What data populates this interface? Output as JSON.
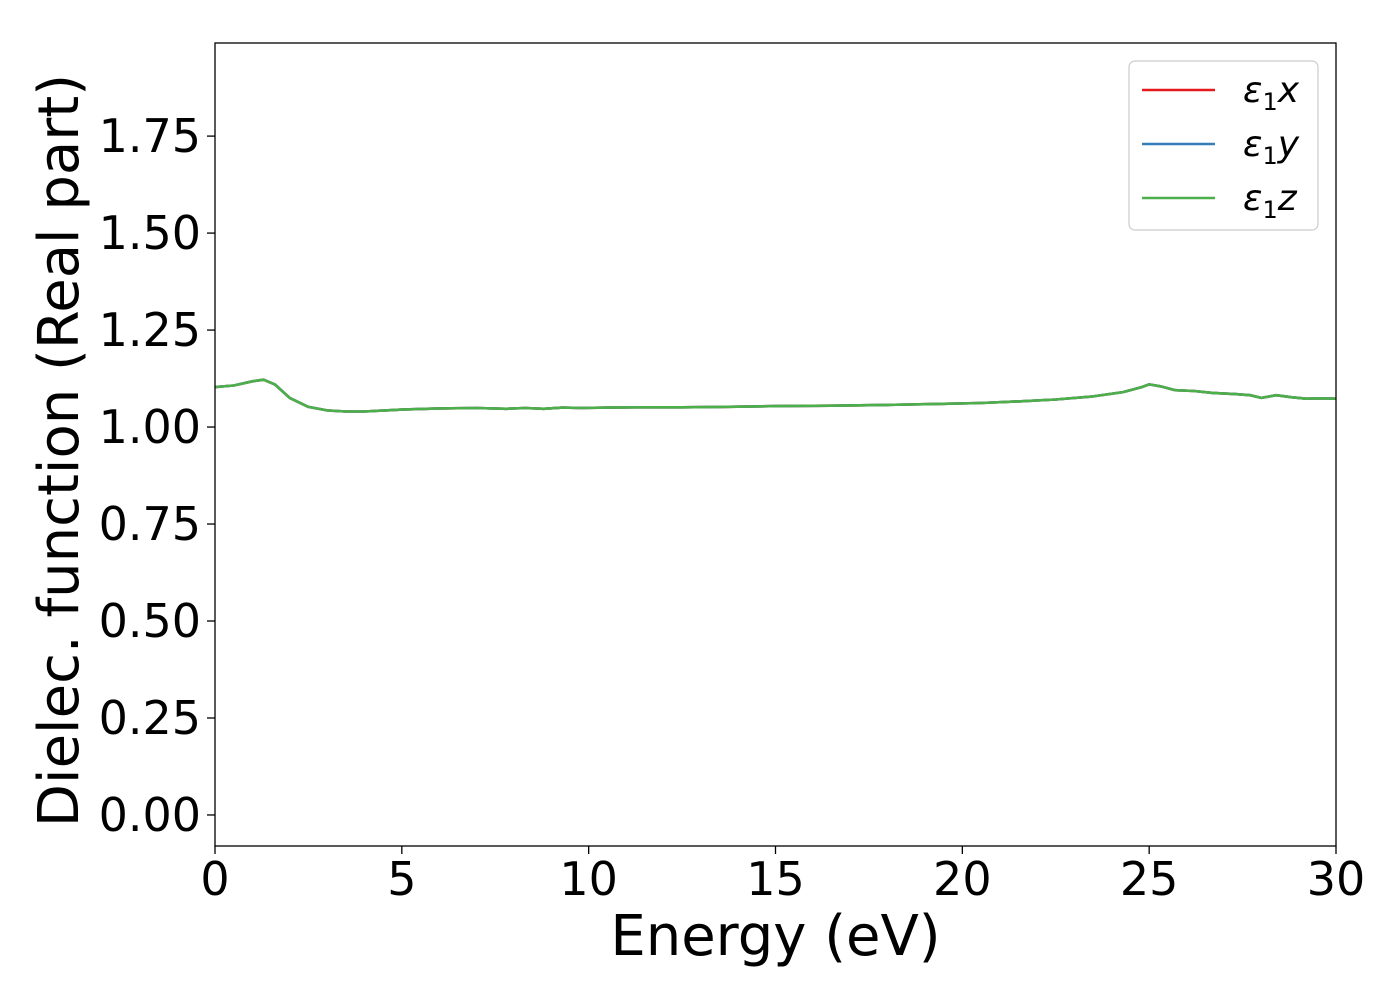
{
  "chart_data": {
    "type": "line",
    "xlabel": "Energy (eV)",
    "ylabel": "Dielec. function (Real part)",
    "xlim": [
      0,
      30
    ],
    "ylim": [
      -0.08,
      1.99
    ],
    "xticks": [
      0,
      5,
      10,
      15,
      20,
      25,
      30
    ],
    "xtick_labels": [
      "0",
      "5",
      "10",
      "15",
      "20",
      "25",
      "30"
    ],
    "yticks": [
      0.0,
      0.25,
      0.5,
      0.75,
      1.0,
      1.25,
      1.5,
      1.75
    ],
    "ytick_labels": [
      "0.00",
      "0.25",
      "0.50",
      "0.75",
      "1.00",
      "1.25",
      "1.50",
      "1.75"
    ],
    "grid": false,
    "legend_position": "top-right",
    "x": [
      0,
      0.5,
      1.0,
      1.3,
      1.6,
      2.0,
      2.5,
      3.0,
      3.5,
      4.0,
      5.0,
      6.0,
      7.0,
      7.8,
      8.3,
      8.8,
      9.3,
      9.8,
      10.5,
      11.5,
      12.5,
      13.5,
      15.0,
      16.5,
      18.0,
      19.5,
      20.5,
      21.5,
      22.5,
      23.5,
      24.3,
      24.8,
      25.0,
      25.3,
      25.7,
      26.2,
      26.7,
      27.3,
      27.7,
      28.0,
      28.4,
      28.8,
      29.2,
      29.6,
      30.0
    ],
    "series": [
      {
        "name": "ε₁x",
        "name_base": "ε",
        "name_sub": "1",
        "name_suffix": "x",
        "color": "#e41a1c",
        "values": [
          1.103,
          1.107,
          1.118,
          1.122,
          1.11,
          1.075,
          1.052,
          1.043,
          1.04,
          1.04,
          1.045,
          1.048,
          1.049,
          1.047,
          1.049,
          1.047,
          1.05,
          1.049,
          1.05,
          1.051,
          1.051,
          1.052,
          1.054,
          1.055,
          1.057,
          1.06,
          1.062,
          1.066,
          1.071,
          1.079,
          1.09,
          1.103,
          1.11,
          1.105,
          1.095,
          1.093,
          1.088,
          1.085,
          1.082,
          1.075,
          1.082,
          1.077,
          1.073,
          1.074,
          1.073
        ]
      },
      {
        "name": "ε₁y",
        "name_base": "ε",
        "name_sub": "1",
        "name_suffix": "y",
        "color": "#377eb8",
        "values": [
          1.103,
          1.107,
          1.118,
          1.122,
          1.11,
          1.075,
          1.052,
          1.043,
          1.04,
          1.04,
          1.045,
          1.048,
          1.049,
          1.047,
          1.049,
          1.047,
          1.05,
          1.049,
          1.05,
          1.051,
          1.051,
          1.052,
          1.054,
          1.055,
          1.057,
          1.06,
          1.062,
          1.066,
          1.071,
          1.079,
          1.09,
          1.103,
          1.11,
          1.105,
          1.095,
          1.093,
          1.088,
          1.085,
          1.082,
          1.075,
          1.082,
          1.077,
          1.073,
          1.074,
          1.073
        ]
      },
      {
        "name": "ε₁z",
        "name_base": "ε",
        "name_sub": "1",
        "name_suffix": "z",
        "color": "#4daf4a",
        "values": [
          1.103,
          1.107,
          1.118,
          1.122,
          1.11,
          1.075,
          1.052,
          1.043,
          1.04,
          1.04,
          1.045,
          1.048,
          1.049,
          1.047,
          1.049,
          1.047,
          1.05,
          1.049,
          1.05,
          1.051,
          1.051,
          1.052,
          1.054,
          1.055,
          1.057,
          1.06,
          1.062,
          1.066,
          1.071,
          1.079,
          1.09,
          1.103,
          1.11,
          1.105,
          1.095,
          1.093,
          1.088,
          1.085,
          1.082,
          1.075,
          1.082,
          1.077,
          1.073,
          1.074,
          1.073
        ]
      }
    ]
  }
}
